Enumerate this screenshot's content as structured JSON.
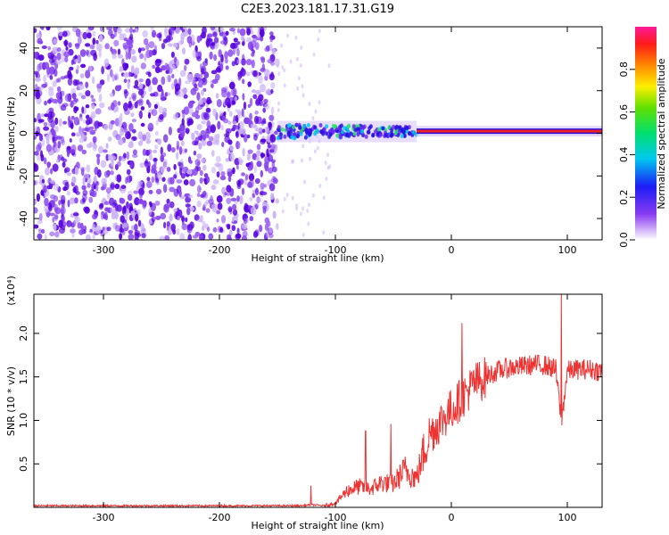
{
  "figure": {
    "title": "C2E3.2023.181.17.31.G19"
  },
  "colors": {
    "signal_line": "#ee3333",
    "scatter_dark": "#5500dd",
    "scatter_mid": "#8844ee",
    "scatter_light": "#c9b0f5",
    "axis": "#000000"
  },
  "chart_data": [
    {
      "type": "heatmap",
      "title": "C2E3.2023.181.17.31.G19",
      "xlabel": "Height of straight line (km)",
      "ylabel": "Frequency (Hz)",
      "xlim": [
        -360,
        130
      ],
      "ylim": [
        -50,
        50
      ],
      "x_ticks": [
        -300,
        -200,
        -100,
        0,
        100
      ],
      "y_ticks": [
        -40,
        -20,
        0,
        20,
        40
      ],
      "colorbar": {
        "label": "Normalized spectral amplitude",
        "range": [
          0.0,
          1.0
        ],
        "ticks": [
          "0.0",
          "0.2",
          "0.4",
          "0.6",
          "0.8"
        ]
      },
      "grid": false,
      "regions": [
        {
          "description": "noise",
          "x_range": [
            -360,
            -150
          ],
          "freq_range": [
            -50,
            50
          ]
        },
        {
          "description": "transition",
          "x_range": [
            -150,
            -30
          ],
          "center_freq": 0
        },
        {
          "description": "tone",
          "x_range": [
            -30,
            130
          ],
          "center_freq": 1,
          "amplitude": 0.9
        }
      ]
    },
    {
      "type": "line",
      "xlabel": "Height of straight line (km)",
      "ylabel": "SNR (10 * v/v)",
      "y_multiplier": "(x10⁴)",
      "xlim": [
        -360,
        130
      ],
      "ylim": [
        0,
        2.45
      ],
      "x_ticks": [
        -300,
        -200,
        -100,
        0,
        100
      ],
      "y_ticks": [
        "0.5",
        "1.0",
        "1.5",
        "2.0"
      ],
      "grid": false,
      "series": [
        {
          "name": "",
          "x": [
            -360,
            -300,
            -200,
            -150,
            -130,
            -120,
            -110,
            -100,
            -90,
            -80,
            -70,
            -60,
            -50,
            -40,
            -30,
            -20,
            -10,
            0,
            10,
            20,
            30,
            40,
            50,
            60,
            70,
            80,
            90,
            95,
            100,
            110,
            120,
            130
          ],
          "y": [
            0.02,
            0.02,
            0.02,
            0.02,
            0.02,
            0.03,
            0.02,
            0.05,
            0.2,
            0.25,
            0.22,
            0.3,
            0.28,
            0.45,
            0.35,
            0.85,
            1.0,
            1.15,
            1.3,
            1.45,
            1.52,
            1.58,
            1.62,
            1.63,
            1.65,
            1.65,
            1.6,
            1.0,
            1.58,
            1.6,
            1.6,
            1.58
          ]
        }
      ],
      "spikes": [
        {
          "x": -121,
          "y": 0.25
        },
        {
          "x": -74,
          "y": 0.88
        },
        {
          "x": -52,
          "y": 0.96
        },
        {
          "x": 9,
          "y": 2.12
        },
        {
          "x": 95,
          "y": 2.45
        }
      ]
    }
  ]
}
